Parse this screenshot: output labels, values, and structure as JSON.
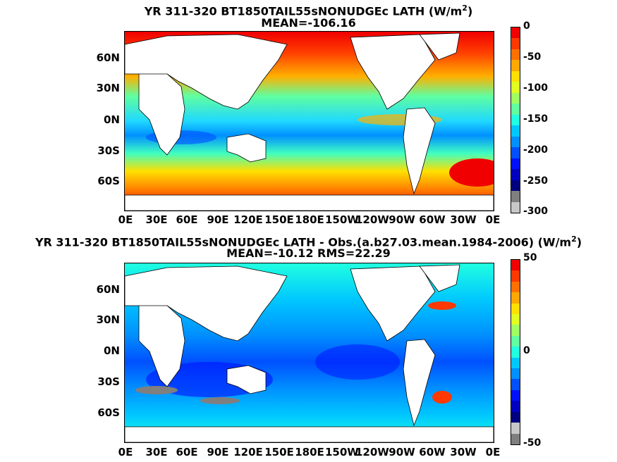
{
  "panel1": {
    "title_prefix": "YR 311-320 BT1850TAIL55sNONUDGEc  LATH (W/m",
    "title_sup": "2",
    "title_suffix": ")",
    "subtitle": "MEAN=-106.16",
    "lat_labels": [
      "60N",
      "30N",
      "0N",
      "30S",
      "60S"
    ],
    "lon_labels": [
      "0E",
      "30E",
      "60E",
      "90E",
      "120E",
      "150E",
      "180E",
      "150W",
      "120W",
      "90W",
      "60W",
      "30W",
      "0E"
    ],
    "colorbar_ticks": [
      "0",
      "-50",
      "-100",
      "-150",
      "-200",
      "-250",
      "-300"
    ],
    "colorbar_colors": [
      "#c8c8c8",
      "#7f7f7f",
      "#00007f",
      "#0000c0",
      "#0010ff",
      "#0050ff",
      "#0090ff",
      "#00c8ff",
      "#20ffe0",
      "#60ffa0",
      "#a0ff60",
      "#e0ff20",
      "#ffe000",
      "#ffa800",
      "#ff7000",
      "#ff3800",
      "#f00000"
    ],
    "range": [
      -300,
      0
    ]
  },
  "panel2": {
    "title_prefix": "YR 311-320 BT1850TAIL55sNONUDGEc LATH - Obs.(a.b27.03.mean.1984-2006) (W/m",
    "title_sup": "2",
    "title_suffix": ")",
    "subtitle": "MEAN=-10.12 RMS=22.29",
    "lat_labels": [
      "60N",
      "30N",
      "0N",
      "30S",
      "60S"
    ],
    "lon_labels": [
      "0E",
      "30E",
      "60E",
      "90E",
      "120E",
      "150E",
      "180E",
      "150W",
      "120W",
      "90W",
      "60W",
      "30W",
      "0E"
    ],
    "colorbar_ticks": [
      "50",
      "0",
      "-50"
    ],
    "colorbar_colors": [
      "#7f7f7f",
      "#c8c8c8",
      "#00007f",
      "#0000c0",
      "#0010ff",
      "#0050ff",
      "#0090ff",
      "#00c8ff",
      "#20ffe0",
      "#60ffa0",
      "#a0ff60",
      "#e0ff20",
      "#ffe000",
      "#ffa800",
      "#ff7000",
      "#ff3800",
      "#f00000"
    ],
    "range": [
      -50,
      50
    ]
  },
  "chart_data": [
    {
      "type": "heatmap",
      "title": "YR 311-320 BT1850TAIL55sNONUDGEc  LATH (W/m2)",
      "subtitle": "MEAN=-106.16",
      "mean": -106.16,
      "units": "W/m2",
      "colorbar_range": [
        -300,
        0
      ]
    },
    {
      "type": "heatmap",
      "title": "YR 311-320 BT1850TAIL55sNONUDGEc LATH - Obs.(a.b27.03.mean.1984-2006) (W/m2)",
      "subtitle": "MEAN=-10.12 RMS=22.29",
      "mean": -10.12,
      "rms": 22.29,
      "units": "W/m2",
      "colorbar_range": [
        -50,
        50
      ]
    }
  ]
}
